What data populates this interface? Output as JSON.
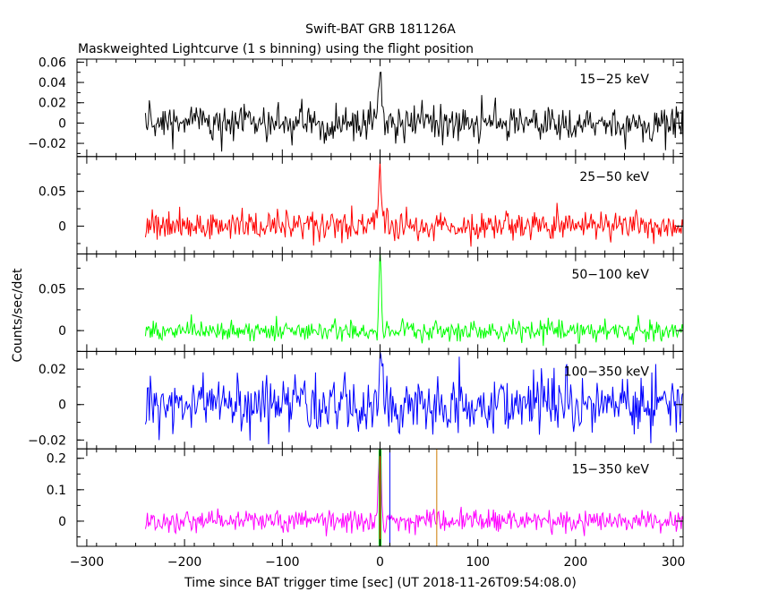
{
  "chart_data": {
    "type": "line",
    "title": "Swift-BAT GRB 181126A",
    "subtitle": "Maskweighted Lightcurve (1 s binning) using the flight position",
    "xlabel": "Time since BAT trigger time [sec] (UT 2018-11-26T09:54:08.0)",
    "ylabel": "Counts/sec/det",
    "xlim": [
      -310,
      310
    ],
    "x_ticks": [
      -300,
      -200,
      -100,
      0,
      100,
      200,
      300
    ],
    "x_tick_labels": [
      "−300",
      "−200",
      "−100",
      "0",
      "100",
      "200",
      "300"
    ],
    "data_x_range": [
      -240,
      310
    ],
    "grid": false,
    "panels": [
      {
        "name": "15−25 keV",
        "color": "#000000",
        "ylim": [
          -0.033,
          0.063
        ],
        "yticks": [
          -0.02,
          0,
          0.02,
          0.04,
          0.06
        ],
        "ytick_labels": [
          "−0.02",
          "0",
          "0.02",
          "0.04",
          "0.06"
        ],
        "noise_std": 0.009,
        "peak": {
          "t": 0,
          "value": 0.055,
          "width_s": 1.5
        }
      },
      {
        "name": "25−50 keV",
        "color": "#ff0000",
        "ylim": [
          -0.04,
          0.1
        ],
        "yticks": [
          0,
          0.05
        ],
        "ytick_labels": [
          "0",
          "0.05"
        ],
        "noise_std": 0.011,
        "peak": {
          "t": 0,
          "value": 0.08,
          "width_s": 1.5
        }
      },
      {
        "name": "50−100 keV",
        "color": "#00ff00",
        "ylim": [
          -0.025,
          0.092
        ],
        "yticks": [
          0,
          0.05
        ],
        "ytick_labels": [
          "0",
          "0.05"
        ],
        "noise_std": 0.006,
        "peak": {
          "t": 0,
          "value": 0.085,
          "width_s": 1.2
        }
      },
      {
        "name": "100−350 keV",
        "color": "#0000ff",
        "ylim": [
          -0.025,
          0.03
        ],
        "yticks": [
          -0.02,
          0,
          0.02
        ],
        "ytick_labels": [
          "−0.02",
          "0",
          "0.02"
        ],
        "noise_std": 0.008,
        "peak": {
          "t": 0,
          "value": 0.022,
          "width_s": 1.5
        }
      },
      {
        "name": "15−350 keV",
        "color": "#ff00ff",
        "ylim": [
          -0.08,
          0.23
        ],
        "yticks": [
          0,
          0.1,
          0.2
        ],
        "ytick_labels": [
          "0",
          "0.1",
          "0.2"
        ],
        "noise_std": 0.018,
        "peak": {
          "t": 0,
          "value": 0.22,
          "width_s": 1.5
        },
        "markers": [
          {
            "t": -1,
            "color": "#00cc00"
          },
          {
            "t": 0,
            "color": "#ff0000"
          },
          {
            "t": 1,
            "color": "#00cc00"
          },
          {
            "t": 10,
            "color": "#0000ff"
          },
          {
            "t": 58,
            "color": "#cc7a00"
          }
        ]
      }
    ]
  }
}
